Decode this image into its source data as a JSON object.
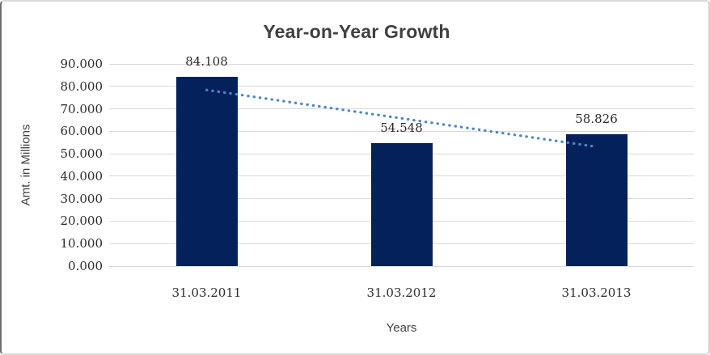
{
  "chart_data": {
    "type": "bar",
    "title": "Year-on-Year Growth",
    "xlabel": "Years",
    "ylabel": "Amt. in Millions",
    "categories": [
      "31.03.2011",
      "31.03.2012",
      "31.03.2013"
    ],
    "values": [
      84.108,
      54.548,
      58.826
    ],
    "data_labels": [
      "84.108",
      "54.548",
      "58.826"
    ],
    "ylim": [
      0,
      90
    ],
    "ytick_step": 10,
    "ytick_labels": [
      "0.000",
      "10.000",
      "20.000",
      "30.000",
      "40.000",
      "50.000",
      "60.000",
      "70.000",
      "80.000",
      "90.000"
    ],
    "grid": true,
    "legend": "none",
    "bar_color": "#04215c",
    "gridline_color": "#d9d9d9",
    "label_color": "#2b2b2b",
    "title_color": "#404040",
    "trendline": {
      "type": "linear",
      "style": "dotted",
      "color": "#4e86c4",
      "start_value": 78.4,
      "end_value": 53.1
    }
  }
}
